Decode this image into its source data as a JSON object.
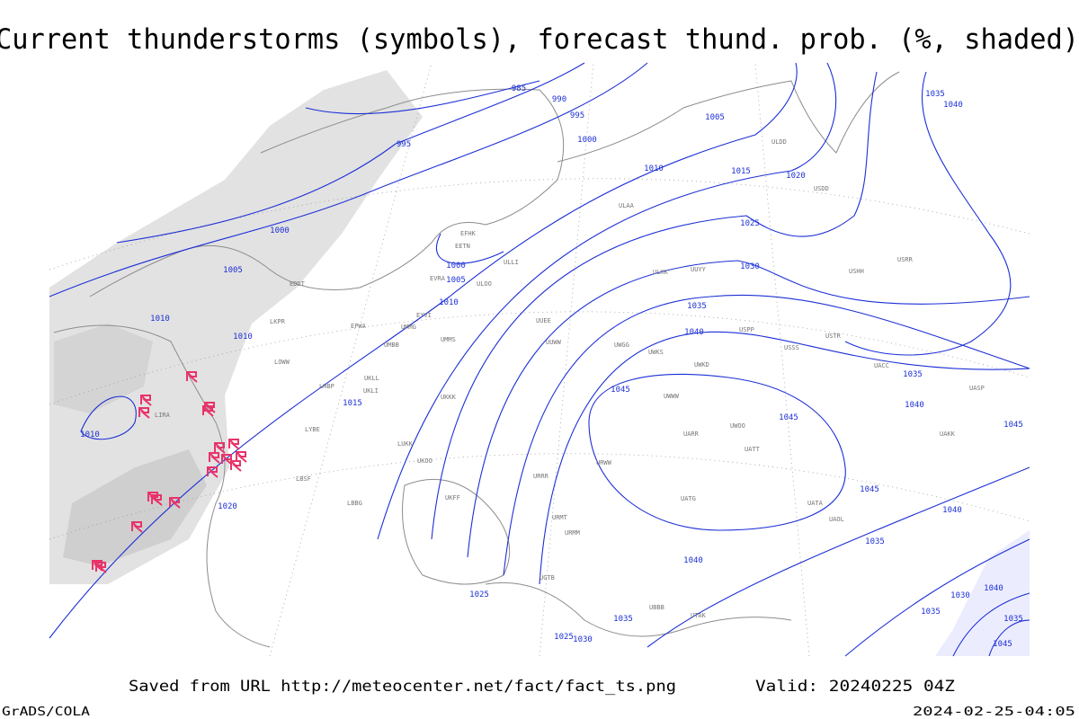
{
  "title": "Current thunderstorms (symbols), forecast thund. prob. (%, shaded)",
  "isobar_labels": [
    985,
    990,
    995,
    1000,
    995,
    1005,
    1010,
    1015,
    1020,
    1025,
    1030,
    1035,
    1040,
    1045,
    1045,
    1000,
    1005,
    1000,
    1005,
    1010,
    1010,
    1010,
    1010,
    1015,
    1020,
    1035,
    1040,
    1045,
    1045,
    1040,
    1035,
    1040,
    1025,
    1025,
    1030,
    1035,
    1035,
    1040,
    1030,
    1040,
    1035,
    1035,
    1045
  ],
  "stations": [
    "EFHK",
    "EETN",
    "EVRA",
    "ULLI",
    "ULOO",
    "EYVI",
    "UMMG",
    "UMMS",
    "UMBB",
    "UKLL",
    "UKLI",
    "UKKK",
    "LHBP",
    "LYBE",
    "LUKK",
    "UKOO",
    "UKFF",
    "LBBG",
    "LBSF",
    "LIRA",
    "EDDT",
    "EPWA",
    "LKPR",
    "LOWW",
    "UUEE",
    "UUWW",
    "ULAA",
    "UUYY",
    "ULKK",
    "UWGG",
    "UWKS",
    "UWKD",
    "UWWW",
    "UWOO",
    "UARR",
    "UATT",
    "URRR",
    "URWW",
    "URMT",
    "URMM",
    "UGTB",
    "UBBB",
    "UTAK",
    "UATG",
    "UATA",
    "UAOL",
    "UACC",
    "UASP",
    "UAKK",
    "USSS",
    "USTR",
    "USPP",
    "USRR",
    "USHH",
    "USDD",
    "ULDD"
  ],
  "footer": {
    "saved": "Saved from URL http://meteocenter.net/fact/fact_ts.png",
    "valid": "Valid: 20240225 04Z",
    "software": "GrADS/COLA",
    "timestamp": "2024-02-25-04:05"
  }
}
